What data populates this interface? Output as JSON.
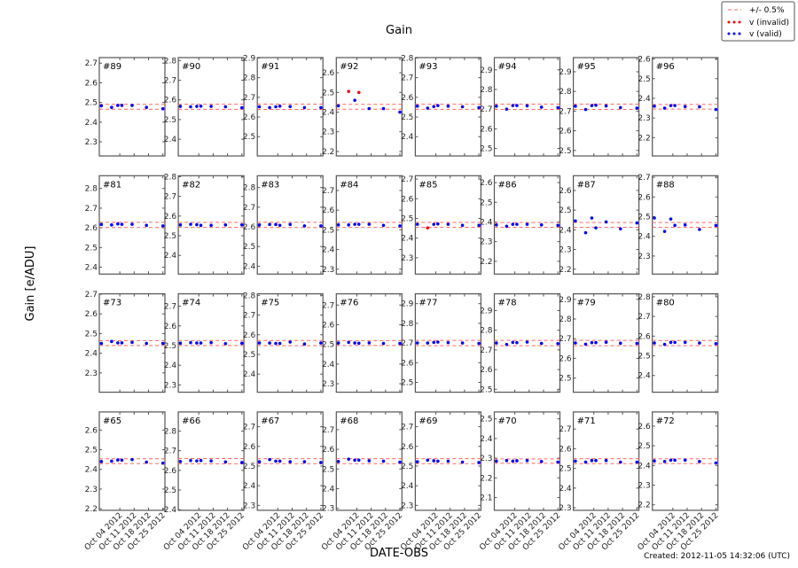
{
  "chart_data": {
    "type": "scatter",
    "title": "Gain",
    "xlabel": "DATE-OBS",
    "ylabel": "Gain [e/ADU]",
    "footer": "Created: 2012-11-05 14:32:06 (UTC)",
    "legend": {
      "placement": "top-right",
      "entries": [
        {
          "label": "+/- 0.5%",
          "style": "dashed",
          "color": "#ff0000"
        },
        {
          "label": "v (invalid)",
          "style": "dots",
          "color": "#ff0000"
        },
        {
          "label": "v (valid)",
          "style": "dots",
          "color": "#0000ff"
        }
      ]
    },
    "tolerance_fraction": 0.005,
    "colors": {
      "valid": "#0000ff",
      "invalid": "#ff0000",
      "band": "#ff0000"
    },
    "dates": [
      "2012-09-25",
      "2012-09-30",
      "2012-10-03",
      "2012-10-05",
      "2012-10-10",
      "2012-10-17",
      "2012-10-25"
    ],
    "xlim": [
      "2012-09-24",
      "2012-10-26"
    ],
    "xticks": [
      {
        "date": "2012-10-04",
        "label": "Oct 04 2012"
      },
      {
        "date": "2012-10-11",
        "label": "Oct 11 2012"
      },
      {
        "date": "2012-10-18",
        "label": "Oct 18 2012"
      },
      {
        "date": "2012-10-25",
        "label": "Oct 25 2012"
      }
    ],
    "grid": false,
    "panels": [
      {
        "label": "#89",
        "ref": 2.478,
        "ylim": [
          2.228,
          2.728
        ],
        "values": [
          2.483,
          2.475,
          2.485,
          2.485,
          2.485,
          2.475,
          2.468
        ],
        "invalid": []
      },
      {
        "label": "#90",
        "ref": 2.565,
        "ylim": [
          2.315,
          2.815
        ],
        "values": [
          2.567,
          2.565,
          2.567,
          2.568,
          2.567,
          2.565,
          2.56
        ],
        "invalid": []
      },
      {
        "label": "#91",
        "ref": 2.652,
        "ylim": [
          2.402,
          2.902
        ],
        "values": [
          2.652,
          2.648,
          2.652,
          2.655,
          2.653,
          2.648,
          2.648
        ],
        "invalid": []
      },
      {
        "label": "#92",
        "ref": 2.427,
        "ylim": [
          2.177,
          2.677
        ],
        "values": [
          2.432,
          2.505,
          2.46,
          2.5,
          2.418,
          2.418,
          2.4
        ],
        "invalid": [
          1,
          3
        ]
      },
      {
        "label": "#93",
        "ref": 2.552,
        "ylim": [
          2.302,
          2.802
        ],
        "values": [
          2.555,
          2.545,
          2.553,
          2.558,
          2.555,
          2.552,
          2.548
        ],
        "invalid": []
      },
      {
        "label": "#94",
        "ref": 2.712,
        "ylim": [
          2.462,
          2.962
        ],
        "values": [
          2.715,
          2.7,
          2.718,
          2.718,
          2.717,
          2.71,
          2.708
        ],
        "invalid": []
      },
      {
        "label": "#95",
        "ref": 2.722,
        "ylim": [
          2.472,
          2.972
        ],
        "values": [
          2.725,
          2.708,
          2.728,
          2.73,
          2.726,
          2.718,
          2.715
        ],
        "invalid": []
      },
      {
        "label": "#96",
        "ref": 2.357,
        "ylim": [
          2.107,
          2.607
        ],
        "values": [
          2.36,
          2.35,
          2.363,
          2.363,
          2.358,
          2.357,
          2.343
        ],
        "invalid": []
      },
      {
        "label": "#81",
        "ref": 2.615,
        "ylim": [
          2.365,
          2.865
        ],
        "values": [
          2.617,
          2.615,
          2.62,
          2.618,
          2.618,
          2.613,
          2.61
        ],
        "invalid": []
      },
      {
        "label": "#82",
        "ref": 2.555,
        "ylim": [
          2.305,
          2.805
        ],
        "values": [
          2.555,
          2.558,
          2.556,
          2.553,
          2.553,
          2.555,
          2.555
        ],
        "invalid": []
      },
      {
        "label": "#83",
        "ref": 2.61,
        "ylim": [
          2.36,
          2.86
        ],
        "values": [
          2.61,
          2.612,
          2.612,
          2.608,
          2.612,
          2.605,
          2.605
        ],
        "invalid": []
      },
      {
        "label": "#84",
        "ref": 2.525,
        "ylim": [
          2.275,
          2.775
        ],
        "values": [
          2.525,
          2.525,
          2.528,
          2.528,
          2.528,
          2.523,
          2.52
        ],
        "invalid": []
      },
      {
        "label": "#85",
        "ref": 2.467,
        "ylim": [
          2.217,
          2.717
        ],
        "values": [
          2.47,
          2.452,
          2.47,
          2.472,
          2.47,
          2.465,
          2.465
        ],
        "invalid": [
          1
        ]
      },
      {
        "label": "#86",
        "ref": 2.385,
        "ylim": [
          2.135,
          2.635
        ],
        "values": [
          2.385,
          2.378,
          2.388,
          2.388,
          2.388,
          2.385,
          2.383
        ],
        "invalid": []
      },
      {
        "label": "#87",
        "ref": 2.425,
        "ylim": [
          2.175,
          2.675
        ],
        "values": [
          2.445,
          2.385,
          2.46,
          2.41,
          2.44,
          2.405,
          2.435
        ],
        "invalid": []
      },
      {
        "label": "#88",
        "ref": 2.458,
        "ylim": [
          2.208,
          2.708
        ],
        "values": [
          2.493,
          2.425,
          2.488,
          2.456,
          2.458,
          2.435,
          2.455
        ],
        "invalid": []
      },
      {
        "label": "#73",
        "ref": 2.452,
        "ylim": [
          2.202,
          2.702
        ],
        "values": [
          2.45,
          2.46,
          2.453,
          2.453,
          2.455,
          2.45,
          2.45
        ],
        "invalid": []
      },
      {
        "label": "#74",
        "ref": 2.513,
        "ylim": [
          2.263,
          2.763
        ],
        "values": [
          2.512,
          2.515,
          2.513,
          2.513,
          2.515,
          2.51,
          2.512
        ],
        "invalid": []
      },
      {
        "label": "#75",
        "ref": 2.558,
        "ylim": [
          2.308,
          2.808
        ],
        "values": [
          2.558,
          2.558,
          2.556,
          2.556,
          2.563,
          2.553,
          2.558
        ],
        "invalid": []
      },
      {
        "label": "#76",
        "ref": 2.507,
        "ylim": [
          2.257,
          2.757
        ],
        "values": [
          2.507,
          2.51,
          2.507,
          2.506,
          2.508,
          2.505,
          2.505
        ],
        "invalid": []
      },
      {
        "label": "#77",
        "ref": 2.7,
        "ylim": [
          2.45,
          2.95
        ],
        "values": [
          2.7,
          2.7,
          2.703,
          2.705,
          2.702,
          2.7,
          2.698
        ],
        "invalid": []
      },
      {
        "label": "#78",
        "ref": 2.735,
        "ylim": [
          2.485,
          2.985
        ],
        "values": [
          2.735,
          2.728,
          2.738,
          2.737,
          2.74,
          2.733,
          2.732
        ],
        "invalid": []
      },
      {
        "label": "#79",
        "ref": 2.678,
        "ylim": [
          2.428,
          2.928
        ],
        "values": [
          2.678,
          2.672,
          2.68,
          2.68,
          2.682,
          2.677,
          2.676
        ],
        "invalid": []
      },
      {
        "label": "#80",
        "ref": 2.565,
        "ylim": [
          2.315,
          2.815
        ],
        "values": [
          2.565,
          2.558,
          2.568,
          2.568,
          2.568,
          2.565,
          2.562
        ],
        "invalid": []
      },
      {
        "label": "#65",
        "ref": 2.442,
        "ylim": [
          2.192,
          2.692
        ],
        "values": [
          2.44,
          2.442,
          2.448,
          2.447,
          2.45,
          2.437,
          2.432
        ],
        "invalid": []
      },
      {
        "label": "#66",
        "ref": 2.647,
        "ylim": [
          2.397,
          2.897
        ],
        "values": [
          2.645,
          2.65,
          2.648,
          2.65,
          2.648,
          2.643,
          2.64
        ],
        "invalid": []
      },
      {
        "label": "#67",
        "ref": 2.525,
        "ylim": [
          2.275,
          2.775
        ],
        "values": [
          2.522,
          2.533,
          2.525,
          2.525,
          2.522,
          2.522,
          2.518
        ],
        "invalid": []
      },
      {
        "label": "#68",
        "ref": 2.54,
        "ylim": [
          2.29,
          2.79
        ],
        "values": [
          2.538,
          2.55,
          2.545,
          2.545,
          2.542,
          2.54,
          2.535
        ],
        "invalid": []
      },
      {
        "label": "#69",
        "ref": 2.525,
        "ylim": [
          2.275,
          2.775
        ],
        "values": [
          2.522,
          2.53,
          2.527,
          2.525,
          2.525,
          2.52,
          2.518
        ],
        "invalid": []
      },
      {
        "label": "#70",
        "ref": 2.285,
        "ylim": [
          2.035,
          2.535
        ],
        "values": [
          2.285,
          2.288,
          2.285,
          2.287,
          2.288,
          2.283,
          2.28
        ],
        "invalid": []
      },
      {
        "label": "#71",
        "ref": 2.537,
        "ylim": [
          2.287,
          2.787
        ],
        "values": [
          2.537,
          2.532,
          2.54,
          2.54,
          2.54,
          2.532,
          2.532
        ],
        "invalid": []
      },
      {
        "label": "#72",
        "ref": 2.422,
        "ylim": [
          2.172,
          2.672
        ],
        "values": [
          2.423,
          2.42,
          2.427,
          2.427,
          2.427,
          2.42,
          2.413
        ],
        "invalid": []
      }
    ]
  }
}
